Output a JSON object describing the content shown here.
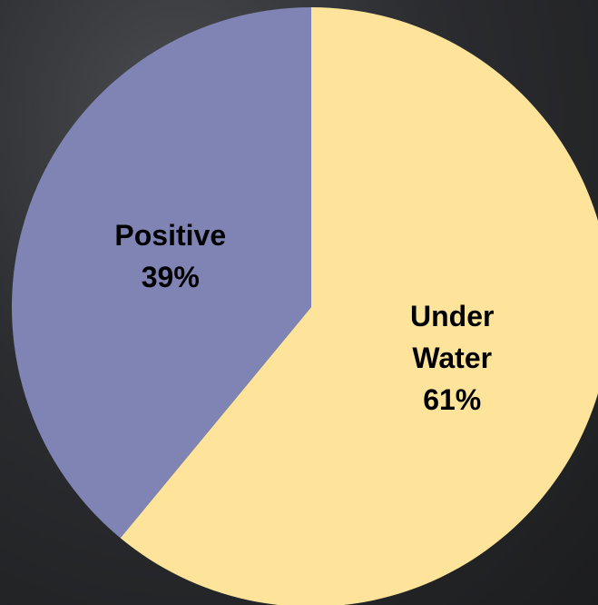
{
  "chart_data": {
    "type": "pie",
    "categories": [
      "Under Water",
      "Positive"
    ],
    "values": [
      61,
      39
    ],
    "value_labels": [
      "61%",
      "39%"
    ],
    "colors": [
      "#FDE49A",
      "#7F84B4"
    ]
  }
}
